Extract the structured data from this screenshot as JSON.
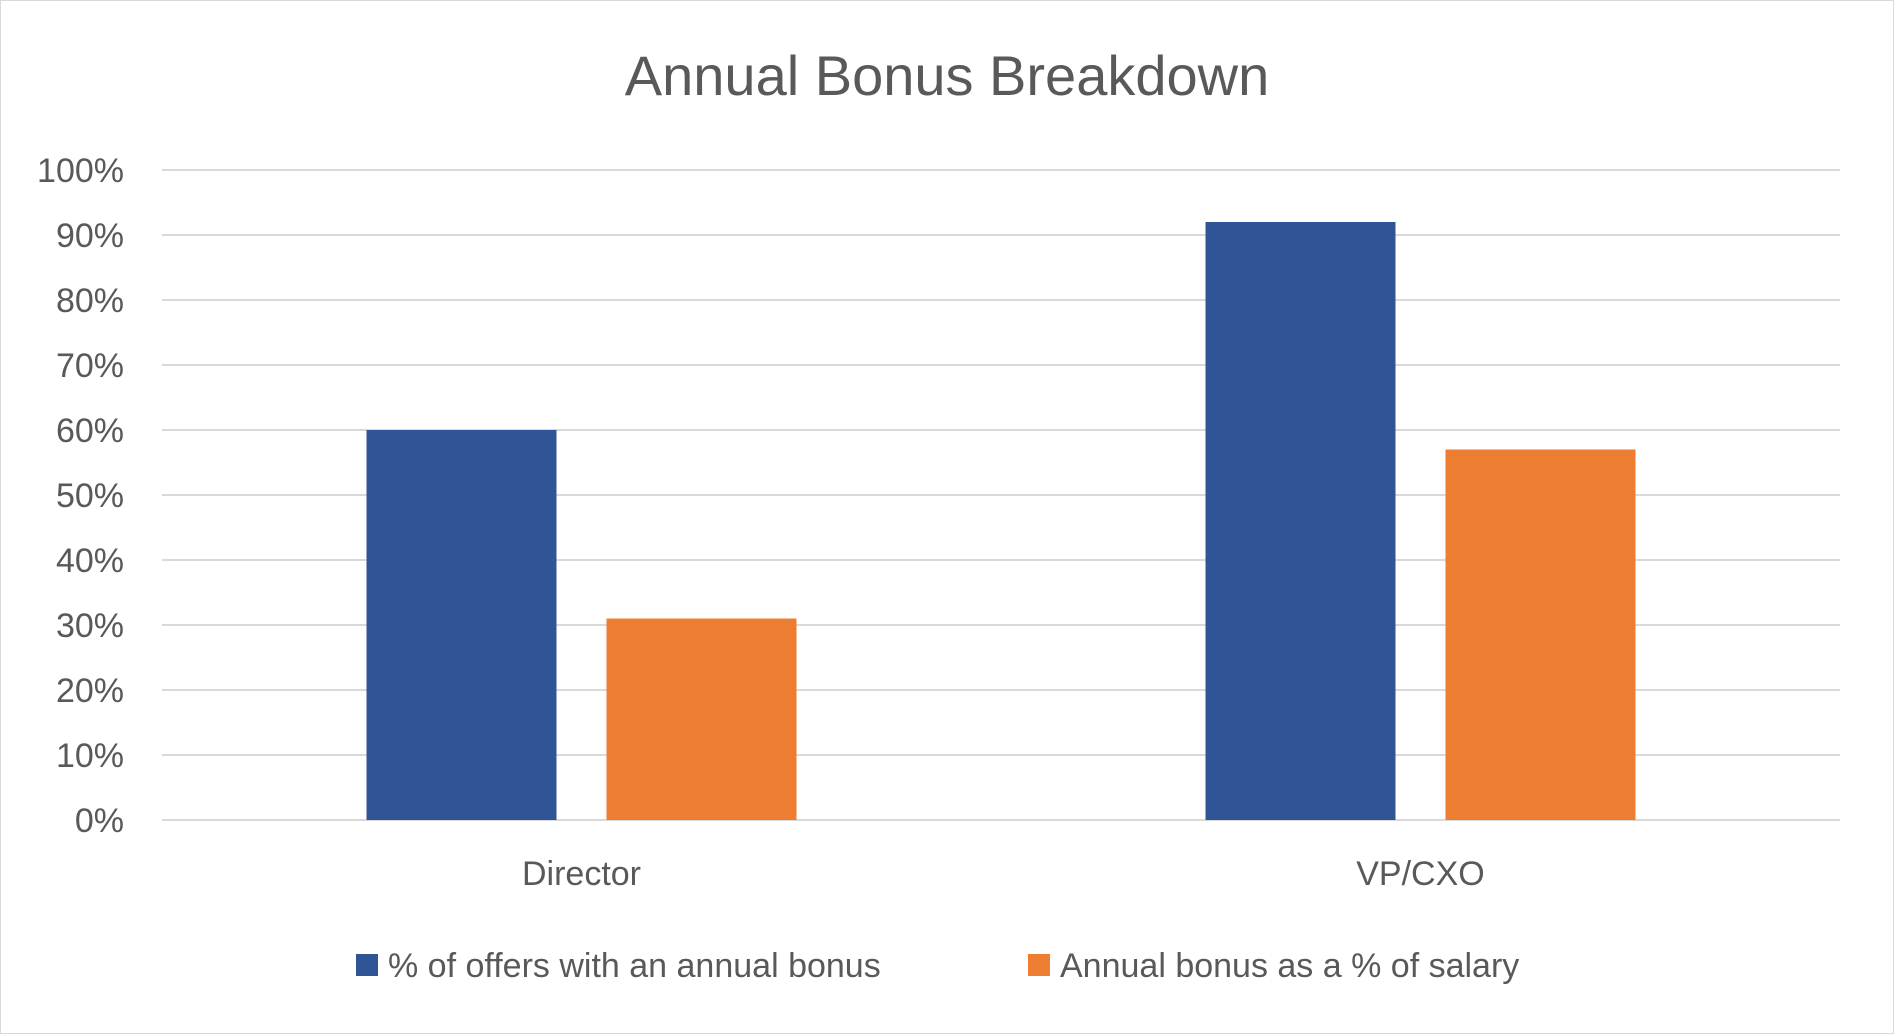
{
  "chart_data": {
    "type": "bar",
    "title": "Annual Bonus Breakdown",
    "xlabel": "",
    "ylabel": "",
    "categories": [
      "Director",
      "VP/CXO"
    ],
    "series": [
      {
        "name": "% of offers with an annual bonus",
        "color": "#2f5597",
        "values": [
          60,
          92
        ]
      },
      {
        "name": "Annual bonus as a % of salary",
        "color": "#ed7d31",
        "values": [
          31,
          57
        ]
      }
    ],
    "ylim": [
      0,
      100
    ],
    "yticks": [
      0,
      10,
      20,
      30,
      40,
      50,
      60,
      70,
      80,
      90,
      100
    ],
    "ytick_labels": [
      "0%",
      "10%",
      "20%",
      "30%",
      "40%",
      "50%",
      "60%",
      "70%",
      "80%",
      "90%",
      "100%"
    ],
    "grid": true,
    "legend_position": "bottom"
  }
}
